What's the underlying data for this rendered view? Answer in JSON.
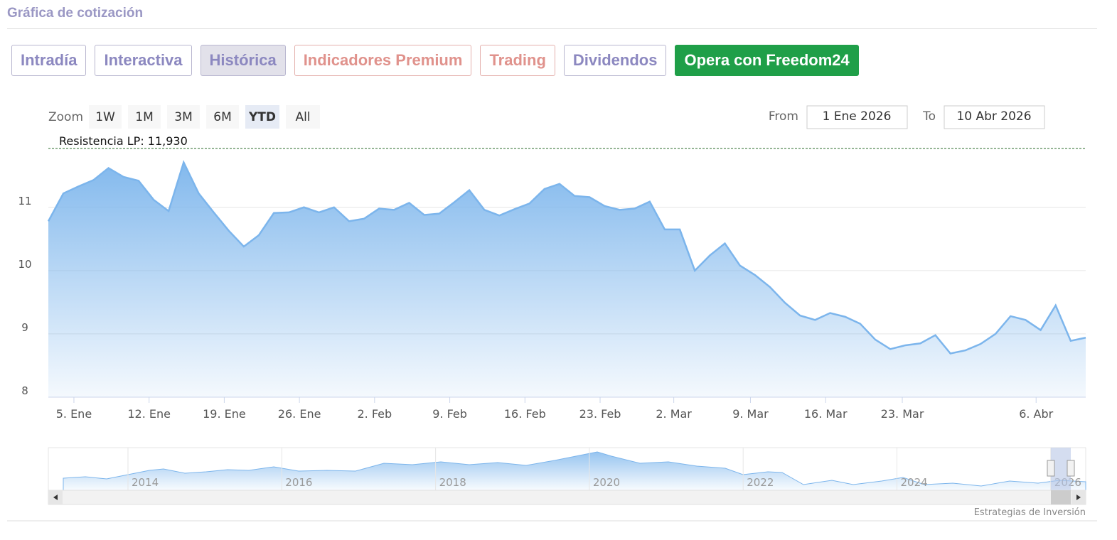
{
  "header": {
    "title": "Gráfica de cotización"
  },
  "tabs": [
    "Intradía",
    "Interactiva",
    "Histórica",
    "Indicadores Premium",
    "Trading",
    "Dividendos",
    "Opera con Freedom24"
  ],
  "zoom": {
    "label": "Zoom",
    "buttons": [
      "1W",
      "1M",
      "3M",
      "6M",
      "YTD",
      "All"
    ]
  },
  "range": {
    "from_label": "From",
    "from": "1 Ene 2026",
    "to_label": "To",
    "to": "10 Abr 2026"
  },
  "chart_data": {
    "type": "area",
    "color": "#7cb5ec",
    "values": [
      10.78,
      11.22,
      11.33,
      11.43,
      11.62,
      11.48,
      11.42,
      11.12,
      10.94,
      11.71,
      11.22,
      10.92,
      10.63,
      10.38,
      10.56,
      10.91,
      10.92,
      11.0,
      10.92,
      11.0,
      10.78,
      10.82,
      10.98,
      10.96,
      11.07,
      10.88,
      10.9,
      11.08,
      11.27,
      10.96,
      10.87,
      10.97,
      11.06,
      11.29,
      11.37,
      11.18,
      11.16,
      11.02,
      10.96,
      10.98,
      11.09,
      10.65,
      10.65,
      10.0,
      10.24,
      10.43,
      10.08,
      9.93,
      9.74,
      9.49,
      9.29,
      9.22,
      9.33,
      9.27,
      9.16,
      8.91,
      8.76,
      8.82,
      8.85,
      8.98,
      8.69,
      8.74,
      8.84,
      9.0,
      9.28,
      9.22,
      9.06,
      9.45,
      8.89,
      8.94
    ],
    "ylim": [
      8,
      12.03
    ],
    "yticks": [
      8,
      9,
      10,
      11
    ],
    "grid": true,
    "xticks": [
      {
        "value": 1.7,
        "label": "5. Ene"
      },
      {
        "value": 6.7,
        "label": "12. Ene"
      },
      {
        "value": 11.7,
        "label": "19. Ene"
      },
      {
        "value": 16.7,
        "label": "26. Ene"
      },
      {
        "value": 21.7,
        "label": "2. Feb"
      },
      {
        "value": 26.7,
        "label": "9. Feb"
      },
      {
        "value": 31.7,
        "label": "16. Feb"
      },
      {
        "value": 36.7,
        "label": "23. Feb"
      },
      {
        "value": 41.6,
        "label": "2. Mar"
      },
      {
        "value": 46.7,
        "label": "9. Mar"
      },
      {
        "value": 51.7,
        "label": "16. Mar"
      },
      {
        "value": 56.8,
        "label": "23. Mar"
      },
      {
        "value": 65.7,
        "label": "6. Abr"
      }
    ],
    "annotations": [
      {
        "value": 11.93,
        "label": "Resistencia LP: 11,930"
      }
    ]
  },
  "navigator": {
    "labels": [
      "2014",
      "2016",
      "2018",
      "2020",
      "2022",
      "2024",
      "2026"
    ]
  },
  "footer": {
    "credit": "Estrategias de Inversión"
  }
}
